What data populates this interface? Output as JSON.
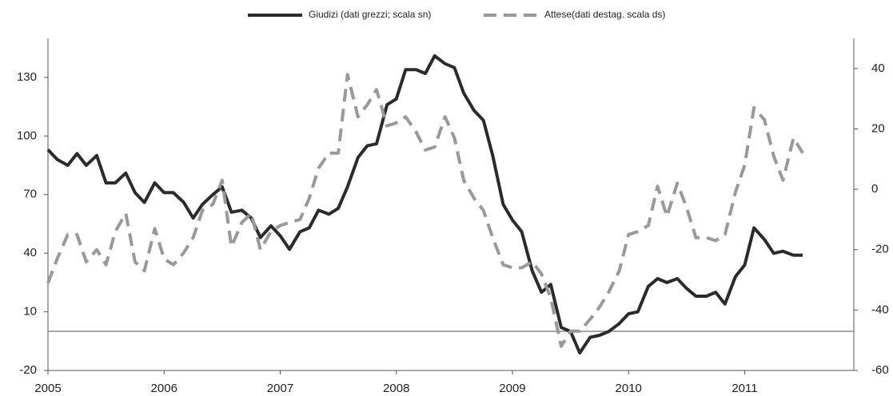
{
  "chart_data": {
    "type": "line",
    "legend_position": "top",
    "x": [
      2005,
      2005.08,
      2005.17,
      2005.25,
      2005.33,
      2005.42,
      2005.5,
      2005.58,
      2005.67,
      2005.75,
      2005.83,
      2005.92,
      2006,
      2006.08,
      2006.17,
      2006.25,
      2006.33,
      2006.42,
      2006.5,
      2006.58,
      2006.67,
      2006.75,
      2006.83,
      2006.92,
      2007,
      2007.08,
      2007.17,
      2007.25,
      2007.33,
      2007.42,
      2007.5,
      2007.58,
      2007.67,
      2007.75,
      2007.83,
      2007.92,
      2008,
      2008.08,
      2008.17,
      2008.25,
      2008.33,
      2008.42,
      2008.5,
      2008.58,
      2008.67,
      2008.75,
      2008.83,
      2008.92,
      2009,
      2009.08,
      2009.17,
      2009.25,
      2009.33,
      2009.42,
      2009.5,
      2009.58,
      2009.67,
      2009.75,
      2009.83,
      2009.92,
      2010,
      2010.08,
      2010.17,
      2010.25,
      2010.33,
      2010.42,
      2010.5,
      2010.58,
      2010.67,
      2010.75,
      2010.83,
      2010.92,
      2011,
      2011.08,
      2011.17,
      2011.25,
      2011.33,
      2011.42,
      2011.5
    ],
    "series": [
      {
        "name": "Giudizi (dati grezzi; scala sn)",
        "color": "#2b2b2b",
        "dashed": false,
        "axis": "y",
        "values": [
          93,
          88,
          85,
          91,
          85,
          90,
          76,
          76,
          81,
          71,
          66,
          76,
          71,
          71,
          66,
          58,
          65,
          70,
          74,
          61,
          62,
          58,
          48,
          54,
          49,
          42,
          51,
          53,
          62,
          60,
          63,
          74,
          89,
          95,
          96,
          116,
          119,
          134,
          134,
          132,
          141,
          137,
          135,
          122,
          113,
          108,
          90,
          65,
          57,
          51,
          31,
          20,
          24,
          2,
          0,
          -11,
          -3,
          -2,
          0,
          4,
          9,
          10,
          23,
          27,
          25,
          27,
          22,
          18,
          18,
          20,
          14,
          28,
          34,
          53,
          47,
          40,
          41,
          39,
          39
        ]
      },
      {
        "name": "Attese(dati destag. scala ds)",
        "color": "#999999",
        "dashed": true,
        "axis": "y2",
        "values": [
          -31,
          -23,
          -15,
          -15,
          -24,
          -20,
          -25,
          -14,
          -8,
          -24,
          -27,
          -13,
          -23,
          -25,
          -21,
          -16,
          -7,
          -5,
          3,
          -19,
          -11,
          -8,
          -20,
          -14,
          -12,
          -11,
          -10,
          -3,
          7,
          12,
          12,
          38,
          24,
          28,
          33,
          21,
          22,
          24,
          19,
          13,
          14,
          24,
          17,
          3,
          -3,
          -7,
          -16,
          -25,
          -26,
          -26,
          -24,
          -28,
          -36,
          -52,
          -47,
          -47,
          -43,
          -39,
          -34,
          -27,
          -15,
          -14,
          -12,
          1,
          -9,
          2,
          -6,
          -16,
          -16,
          -17,
          -15,
          -1,
          8,
          27,
          23,
          11,
          3,
          17,
          12
        ]
      }
    ],
    "xlim": [
      2005,
      2011.94
    ],
    "xticks": [
      2005,
      2006,
      2007,
      2008,
      2009,
      2010,
      2011
    ],
    "ylim": [
      -20,
      150
    ],
    "yticks": [
      -20,
      10,
      40,
      70,
      100,
      130
    ],
    "y2lim": [
      -60,
      50
    ],
    "y2ticks": [
      -60,
      -40,
      -20,
      0,
      20,
      40
    ],
    "reference_line": 0
  }
}
